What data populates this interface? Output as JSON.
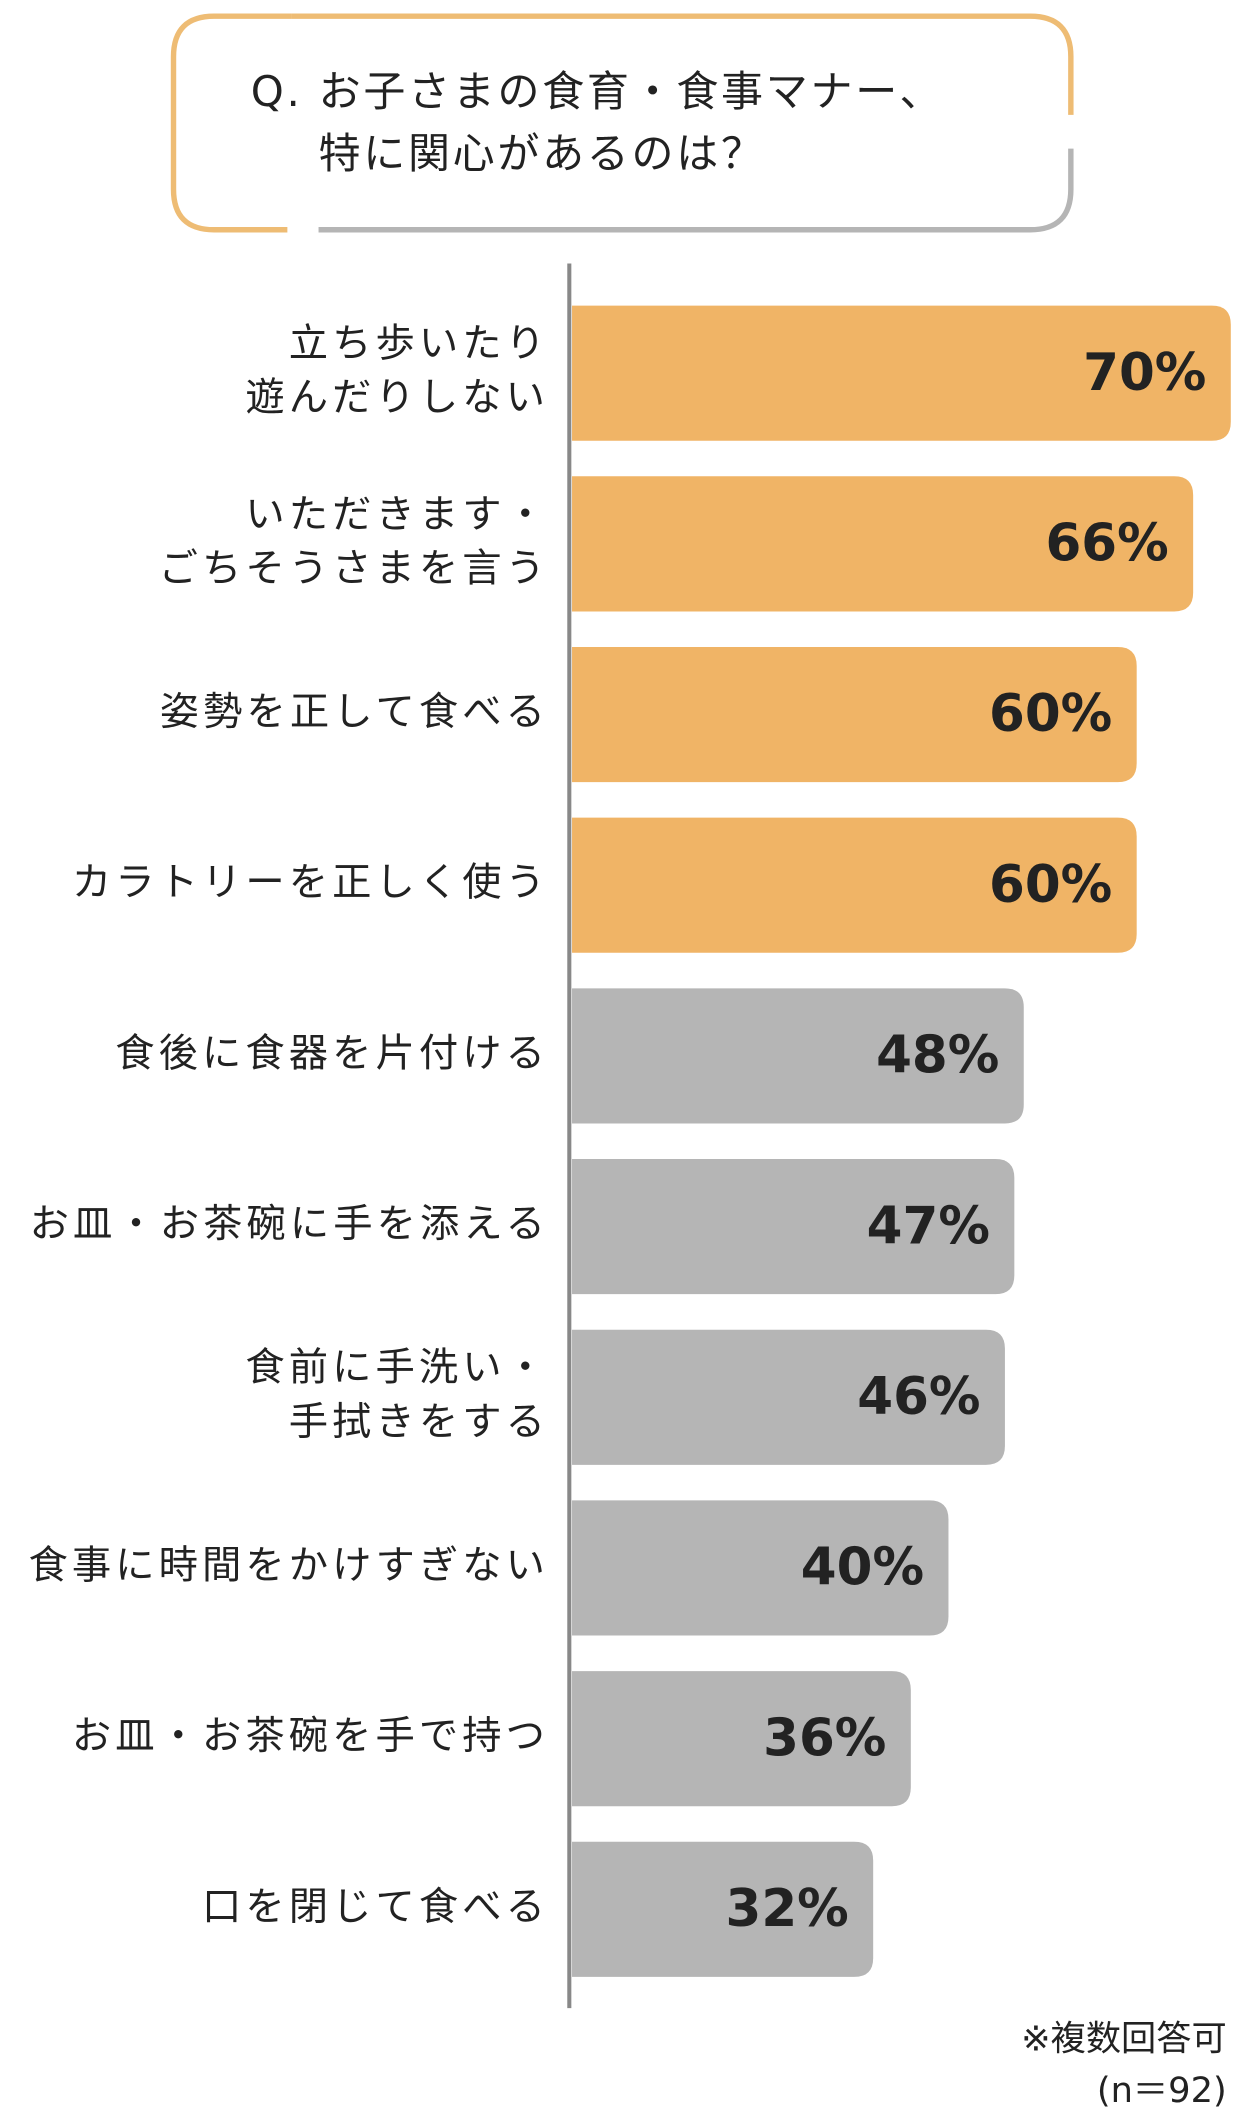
{
  "chart_data": {
    "type": "bar",
    "orientation": "horizontal",
    "title": [
      "Q. お子さまの食育・食事マナー、",
      "特に関心があるのは？"
    ],
    "categories": [
      [
        "立ち歩いたり",
        "遊んだりしない"
      ],
      [
        "いただきます・",
        "ごちそうさまを言う"
      ],
      [
        "姿勢を正して食べる"
      ],
      [
        "カラトリーを正しく使う"
      ],
      [
        "食後に食器を片付ける"
      ],
      [
        "お皿・お茶碗に手を添える"
      ],
      [
        "食前に手洗い・",
        "手拭きをする"
      ],
      [
        "食事に時間をかけすぎない"
      ],
      [
        "お皿・お茶碗を手で持つ"
      ],
      [
        "口を閉じて食べる"
      ]
    ],
    "values": [
      70,
      66,
      60,
      60,
      48,
      47,
      46,
      40,
      36,
      32
    ],
    "value_labels": [
      "70%",
      "66%",
      "60%",
      "60%",
      "48%",
      "47%",
      "46%",
      "40%",
      "36%",
      "32%"
    ],
    "colors": [
      "#f0b466",
      "#f0b466",
      "#f0b466",
      "#f0b466",
      "#b5b5b5",
      "#b5b5b5",
      "#b5b5b5",
      "#b5b5b5",
      "#b5b5b5",
      "#b5b5b5"
    ],
    "notes": [
      "※複数回答可",
      "(n＝92)"
    ]
  }
}
